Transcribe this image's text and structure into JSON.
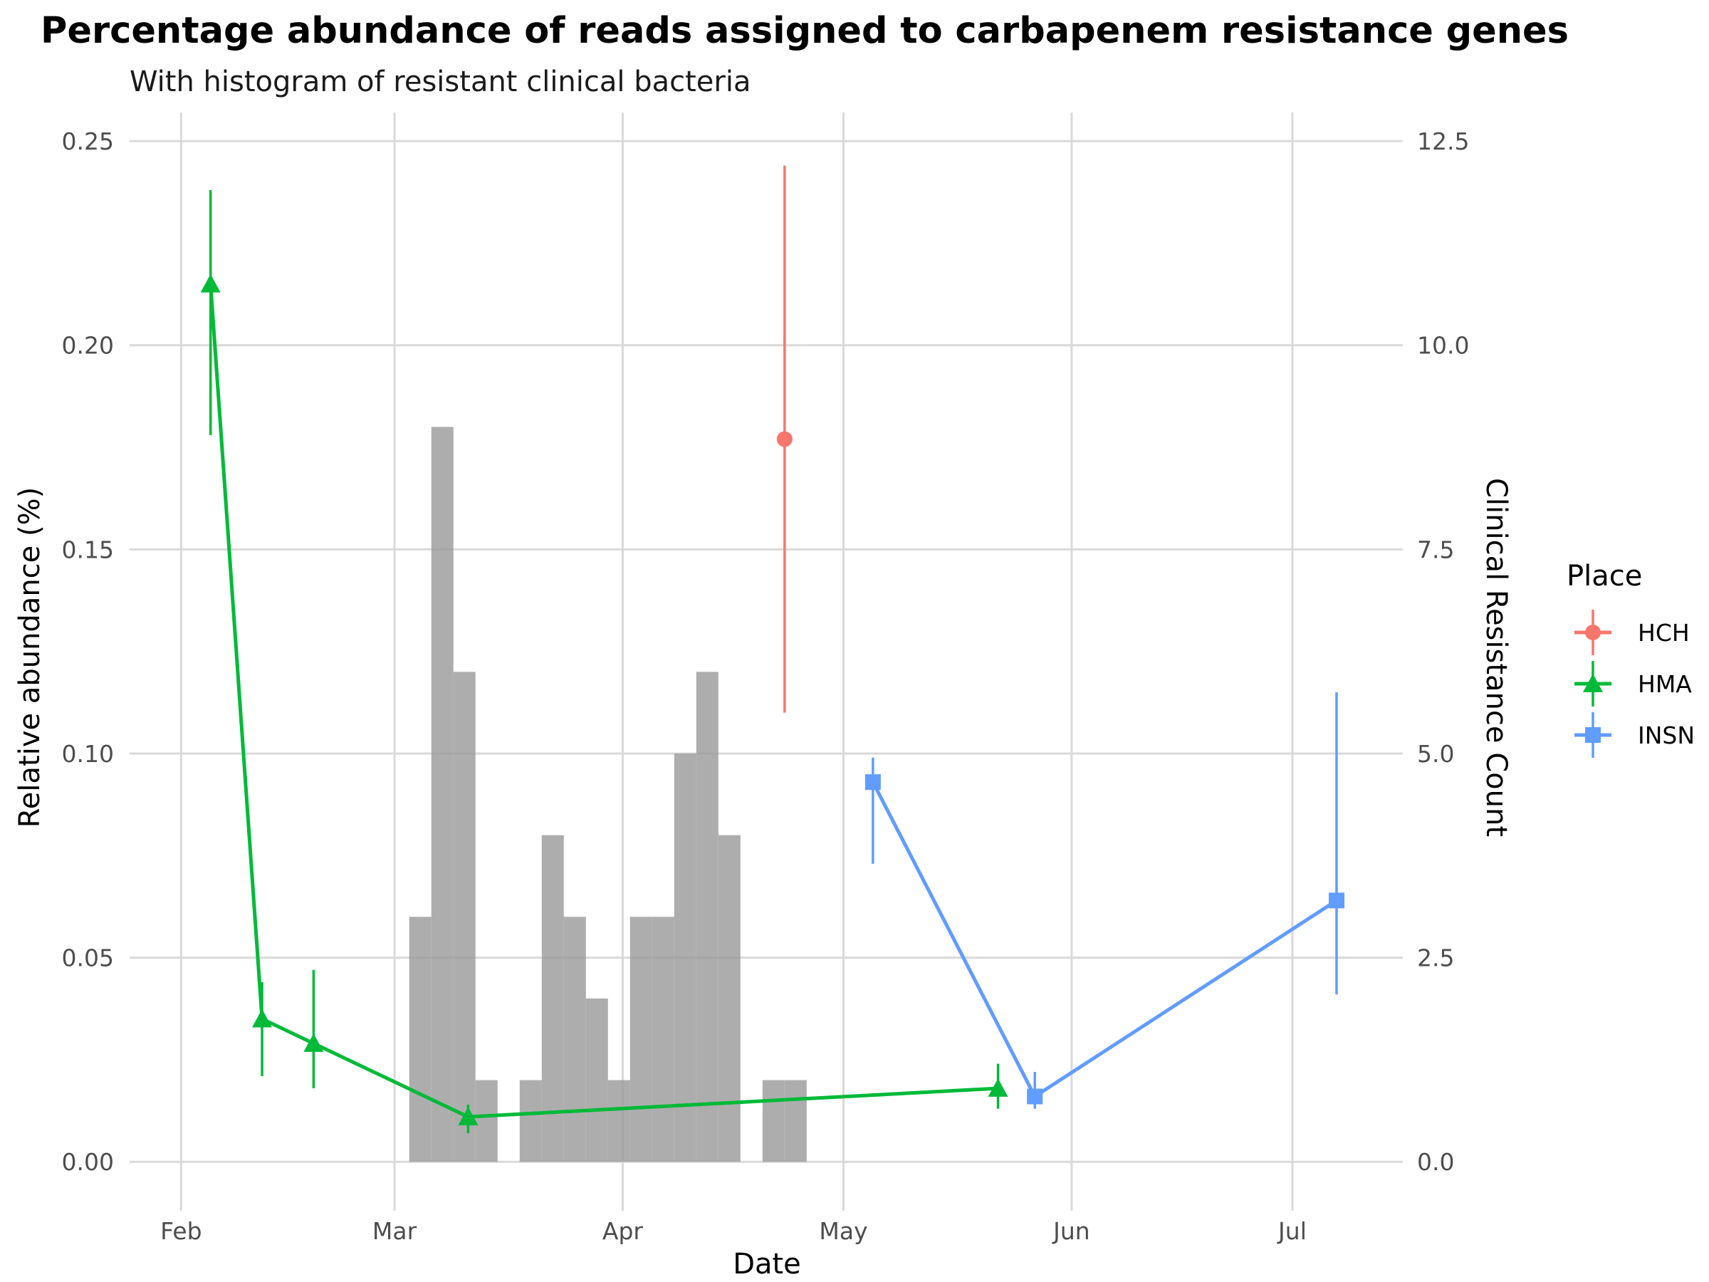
{
  "chart_data": {
    "type": "line",
    "title": "Percentage abundance of reads assigned to carbapenem resistance genes",
    "subtitle": "With histogram of resistant clinical bacteria",
    "xlabel": "Date",
    "ylabel": "Relative abundance (%)",
    "y2label": "Clinical Resistance Count",
    "x_ticks": [
      "Feb",
      "Mar",
      "Apr",
      "May",
      "Jun",
      "Jul"
    ],
    "y_ticks": [
      "0.00",
      "0.05",
      "0.10",
      "0.15",
      "0.20",
      "0.25"
    ],
    "y2_ticks": [
      "0.0",
      "2.5",
      "5.0",
      "7.5",
      "10.0",
      "12.5"
    ],
    "ylim": [
      -0.012,
      0.257
    ],
    "y2lim": [
      -0.6,
      12.85
    ],
    "xlim": [
      "2020-01-25",
      "2020-07-16"
    ],
    "grid": true,
    "legend": {
      "title": "Place",
      "position": "right",
      "items": [
        {
          "label": "HCH",
          "color": "#F8766D",
          "shape": "circle"
        },
        {
          "label": "HMA",
          "color": "#00BA38",
          "shape": "triangle"
        },
        {
          "label": "INSN",
          "color": "#619CFF",
          "shape": "square"
        }
      ]
    },
    "series": [
      {
        "name": "HCH",
        "color": "#F8766D",
        "shape": "circle",
        "points": [
          {
            "x": "2020-04-23",
            "y": 0.177,
            "ymin": 0.11,
            "ymax": 0.244
          }
        ]
      },
      {
        "name": "HMA",
        "color": "#00BA38",
        "shape": "triangle",
        "points": [
          {
            "x": "2020-02-05",
            "y": 0.215,
            "ymin": 0.178,
            "ymax": 0.238
          },
          {
            "x": "2020-02-12",
            "y": 0.035,
            "ymin": 0.021,
            "ymax": 0.044
          },
          {
            "x": "2020-02-19",
            "y": 0.029,
            "ymin": 0.018,
            "ymax": 0.047
          },
          {
            "x": "2020-03-11",
            "y": 0.011,
            "ymin": 0.007,
            "ymax": 0.014
          },
          {
            "x": "2020-05-22",
            "y": 0.018,
            "ymin": 0.013,
            "ymax": 0.024
          }
        ]
      },
      {
        "name": "INSN",
        "color": "#619CFF",
        "shape": "square",
        "points": [
          {
            "x": "2020-05-05",
            "y": 0.093,
            "ymin": 0.073,
            "ymax": 0.099
          },
          {
            "x": "2020-05-27",
            "y": 0.016,
            "ymin": 0.013,
            "ymax": 0.022
          },
          {
            "x": "2020-07-07",
            "y": 0.064,
            "ymin": 0.041,
            "ymax": 0.115
          }
        ]
      }
    ],
    "histogram": {
      "color": "#999999",
      "bins": [
        {
          "start": "2020-03-03",
          "end": "2020-03-06",
          "count": 3
        },
        {
          "start": "2020-03-06",
          "end": "2020-03-09",
          "count": 9
        },
        {
          "start": "2020-03-09",
          "end": "2020-03-12",
          "count": 6
        },
        {
          "start": "2020-03-12",
          "end": "2020-03-15",
          "count": 1
        },
        {
          "start": "2020-03-18",
          "end": "2020-03-21",
          "count": 1
        },
        {
          "start": "2020-03-21",
          "end": "2020-03-24",
          "count": 4
        },
        {
          "start": "2020-03-24",
          "end": "2020-03-27",
          "count": 3
        },
        {
          "start": "2020-03-27",
          "end": "2020-03-30",
          "count": 2
        },
        {
          "start": "2020-03-30",
          "end": "2020-04-02",
          "count": 1
        },
        {
          "start": "2020-04-02",
          "end": "2020-04-05",
          "count": 3
        },
        {
          "start": "2020-04-05",
          "end": "2020-04-08",
          "count": 3
        },
        {
          "start": "2020-04-08",
          "end": "2020-04-11",
          "count": 5
        },
        {
          "start": "2020-04-11",
          "end": "2020-04-14",
          "count": 6
        },
        {
          "start": "2020-04-14",
          "end": "2020-04-17",
          "count": 4
        },
        {
          "start": "2020-04-20",
          "end": "2020-04-23",
          "count": 1
        },
        {
          "start": "2020-04-23",
          "end": "2020-04-26",
          "count": 1
        }
      ]
    }
  }
}
